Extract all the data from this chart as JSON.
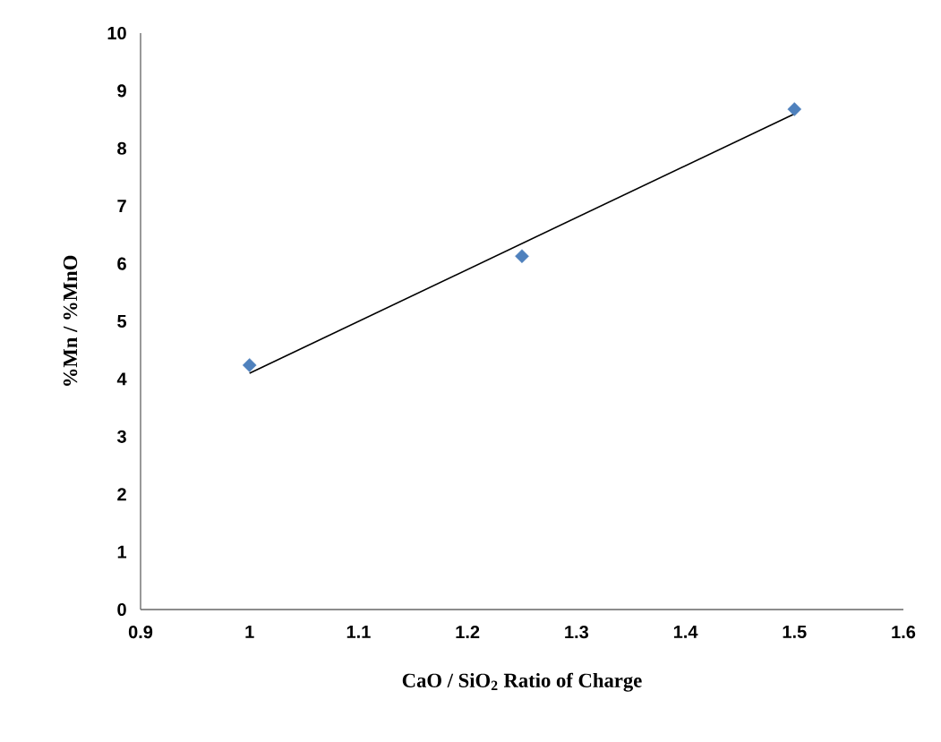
{
  "chart_data": {
    "type": "scatter",
    "xlabel": "CaO / SiO$_{2}$ Ratio of Charge",
    "ylabel": "%Mn / %MnO",
    "marker": "diamond",
    "grid": false,
    "series": [
      {
        "color": "#4f81bd",
        "x": [
          1,
          1.25,
          1.5
        ],
        "values": [
          4.24,
          6.13,
          8.68
        ]
      },
      {
        "type": "line",
        "color": "#000000",
        "marker": "none",
        "x": [
          1,
          1.5
        ],
        "values": [
          4.1,
          8.6
        ]
      }
    ],
    "xlim": [
      0.9,
      1.6
    ],
    "xticks": [
      0.9,
      1,
      1.1,
      1.2,
      1.3,
      1.4,
      1.5,
      1.6
    ],
    "ylim": [
      0,
      10
    ],
    "yticks": [
      0,
      1,
      2,
      3,
      4,
      5,
      6,
      7,
      8,
      9,
      10
    ]
  }
}
